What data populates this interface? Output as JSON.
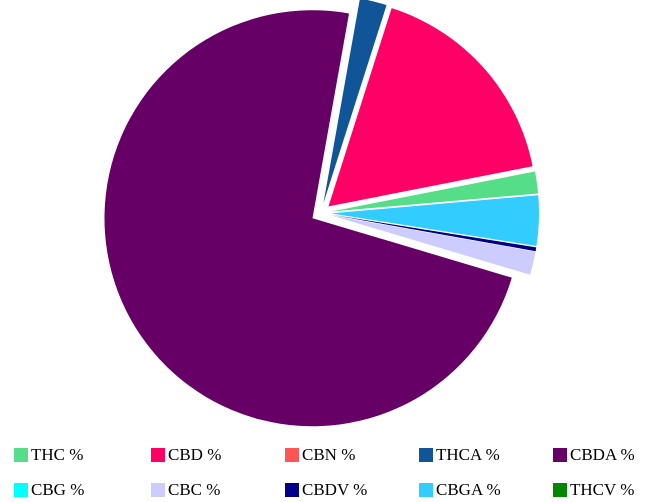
{
  "chart_data": {
    "type": "pie",
    "title": "",
    "exploded": true,
    "legend_position": "bottom",
    "slices": [
      {
        "label": "THC %",
        "value": 1.7,
        "color": "#55dd88"
      },
      {
        "label": "CBD %",
        "value": 17.0,
        "color": "#ff0066"
      },
      {
        "label": "CBN %",
        "value": 0.0,
        "color": "#ff5555"
      },
      {
        "label": "THCA %",
        "value": 2.1,
        "color": "#115599"
      },
      {
        "label": "CBDA %",
        "value": 73.2,
        "color": "#660066"
      },
      {
        "label": "CBG %",
        "value": 0.0,
        "color": "#00ffff"
      },
      {
        "label": "CBC %",
        "value": 1.8,
        "color": "#ccccff"
      },
      {
        "label": "CBDV %",
        "value": 0.3,
        "color": "#000088"
      },
      {
        "label": "CBGA %",
        "value": 3.9,
        "color": "#33ccff"
      },
      {
        "label": "THCV %",
        "value": 0.0,
        "color": "#008800"
      }
    ],
    "draw_order": [
      8,
      7,
      6,
      5,
      4,
      3,
      2,
      1,
      0,
      9
    ]
  }
}
